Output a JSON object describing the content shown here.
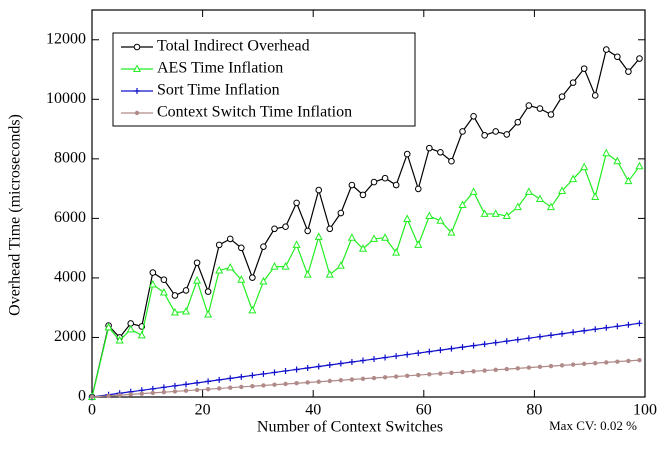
{
  "chart_data": {
    "type": "line",
    "x_label": "Number of Context Switches",
    "y_label": "Overhead Time (microseconds)",
    "annotation": "Max CV: 0.02 %",
    "xlim": [
      0,
      100
    ],
    "xticks": [
      0,
      20,
      40,
      60,
      80,
      100
    ],
    "ylim": [
      0,
      13000
    ],
    "yticks": [
      0,
      2000,
      4000,
      6000,
      8000,
      10000,
      12000
    ],
    "legend": "upper left",
    "x": [
      0,
      3,
      5,
      7,
      9,
      11,
      13,
      15,
      17,
      19,
      21,
      23,
      25,
      27,
      29,
      31,
      33,
      35,
      37,
      39,
      41,
      43,
      45,
      47,
      49,
      51,
      53,
      55,
      57,
      59,
      61,
      63,
      65,
      67,
      69,
      71,
      73,
      75,
      77,
      79,
      81,
      83,
      85,
      87,
      89,
      91,
      93,
      95,
      97,
      99
    ],
    "series": [
      {
        "name": "Total Indirect Overhead",
        "color": "#000000",
        "marker": "circle",
        "values": [
          0,
          2400,
          2000,
          2470,
          2370,
          4180,
          3940,
          3410,
          3580,
          4510,
          3540,
          5110,
          5310,
          5010,
          4010,
          5050,
          5650,
          5720,
          6520,
          5580,
          6950,
          5650,
          6180,
          7120,
          6790,
          7220,
          7350,
          7120,
          8160,
          6990,
          8360,
          8220,
          7920,
          8920,
          9430,
          8790,
          8920,
          8820,
          9230,
          9790,
          9690,
          9490,
          10090,
          10560,
          11030,
          10130,
          11670,
          11430,
          10930,
          11370
        ]
      },
      {
        "name": "AES Time Inflation",
        "color": "#22ee22",
        "marker": "triangle",
        "values": [
          0,
          2340,
          1900,
          2270,
          2070,
          3780,
          3510,
          2840,
          2870,
          3910,
          2770,
          4250,
          4350,
          3940,
          2910,
          3880,
          4380,
          4380,
          5110,
          4110,
          5380,
          4110,
          4410,
          5350,
          4980,
          5310,
          5350,
          4850,
          5980,
          5110,
          6080,
          5920,
          5520,
          6450,
          6890,
          6150,
          6150,
          6080,
          6380,
          6890,
          6650,
          6380,
          6920,
          7320,
          7720,
          6720,
          8190,
          7920,
          7250,
          7750
        ]
      },
      {
        "name": "Sort Time Inflation",
        "color": "#1010cc",
        "marker": "plus",
        "values": [
          0,
          75,
          125,
          175,
          225,
          275,
          325,
          375,
          425,
          475,
          525,
          575,
          625,
          675,
          725,
          775,
          825,
          875,
          925,
          975,
          1025,
          1075,
          1125,
          1175,
          1225,
          1275,
          1325,
          1375,
          1425,
          1475,
          1525,
          1575,
          1625,
          1675,
          1725,
          1775,
          1825,
          1875,
          1925,
          1975,
          2025,
          2075,
          2125,
          2175,
          2225,
          2275,
          2325,
          2375,
          2425,
          2475
        ]
      },
      {
        "name": "Context Switch Time Inflation",
        "color": "#b08a88",
        "marker": "dot",
        "values": [
          0,
          37.5,
          62.5,
          87.5,
          112.5,
          137.5,
          162.5,
          187.5,
          212.5,
          237.5,
          262.5,
          287.5,
          312.5,
          337.5,
          362.5,
          387.5,
          412.5,
          437.5,
          462.5,
          487.5,
          512.5,
          537.5,
          562.5,
          587.5,
          612.5,
          637.5,
          662.5,
          687.5,
          712.5,
          737.5,
          762.5,
          787.5,
          812.5,
          837.5,
          862.5,
          887.5,
          912.5,
          937.5,
          962.5,
          987.5,
          1012.5,
          1037.5,
          1062.5,
          1087.5,
          1112.5,
          1137.5,
          1162.5,
          1187.5,
          1212.5,
          1237.5
        ]
      }
    ]
  }
}
